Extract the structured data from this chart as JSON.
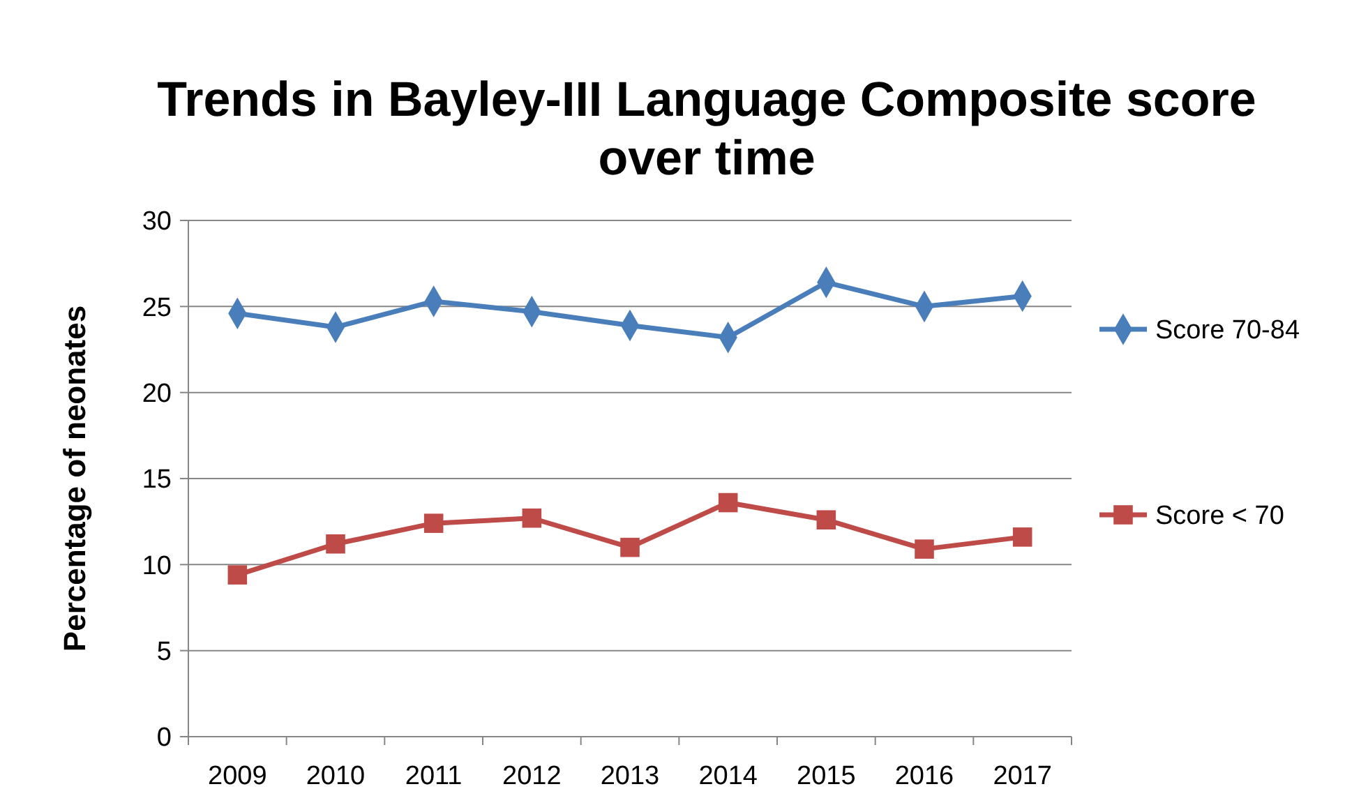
{
  "chart_data": {
    "type": "line",
    "title": "Trends in Bayley-III Language Composite score over time",
    "ylabel": "Percentage of neonates",
    "categories": [
      "2009",
      "2010",
      "2011",
      "2012",
      "2013",
      "2014",
      "2015",
      "2016",
      "2017"
    ],
    "series": [
      {
        "name": "Score 70-84",
        "color": "#4a7ebb",
        "marker": "diamond",
        "values": [
          24.6,
          23.8,
          25.3,
          24.7,
          23.9,
          23.2,
          26.4,
          25.0,
          25.6
        ]
      },
      {
        "name": "Score < 70",
        "color": "#be4b48",
        "marker": "square",
        "values": [
          9.4,
          11.2,
          12.4,
          12.7,
          11.0,
          13.6,
          12.6,
          10.9,
          11.6
        ]
      }
    ],
    "ylim": [
      0,
      30
    ],
    "yticks": [
      0,
      5,
      10,
      15,
      20,
      25,
      30
    ],
    "grid": "y",
    "legend": "right"
  }
}
